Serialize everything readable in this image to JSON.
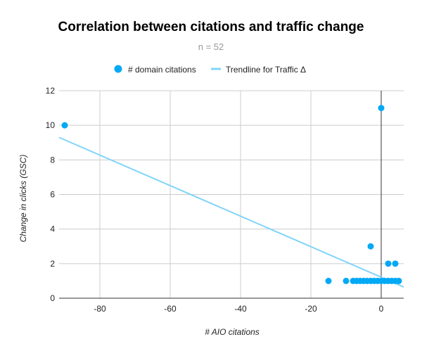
{
  "chart_data": {
    "type": "scatter",
    "title": "Correlation between citations and traffic change",
    "subtitle": "n = 52",
    "xlabel": "# AIO citations",
    "ylabel": "Change in clicks (GSC)",
    "xlim": [
      -91.6,
      6.4
    ],
    "ylim": [
      0,
      12
    ],
    "x_ticks": [
      -80,
      -60,
      -40,
      -20,
      0
    ],
    "y_ticks": [
      0,
      2,
      4,
      6,
      8,
      10,
      12
    ],
    "grid": true,
    "legend_position": "top",
    "series": [
      {
        "name": "# domain citations",
        "color": "#03a9f4",
        "points": [
          [
            -90,
            10
          ],
          [
            0,
            11
          ],
          [
            -3,
            3
          ],
          [
            2,
            2
          ],
          [
            4,
            2
          ],
          [
            -15,
            1
          ],
          [
            -10,
            1
          ],
          [
            -8,
            1
          ],
          [
            -7,
            1
          ],
          [
            -6,
            1
          ],
          [
            -5,
            1
          ],
          [
            -4,
            1
          ],
          [
            -3,
            1
          ],
          [
            -2,
            1
          ],
          [
            -1,
            1
          ],
          [
            0,
            1
          ],
          [
            1,
            1
          ],
          [
            2,
            1
          ],
          [
            3,
            1
          ],
          [
            4,
            1
          ],
          [
            5,
            1
          ]
        ]
      },
      {
        "name": "Trendline for Traffic Δ",
        "color": "#81d4fa",
        "type": "trendline",
        "points": [
          [
            -91.6,
            9.3
          ],
          [
            6.4,
            0.65
          ]
        ]
      }
    ]
  }
}
